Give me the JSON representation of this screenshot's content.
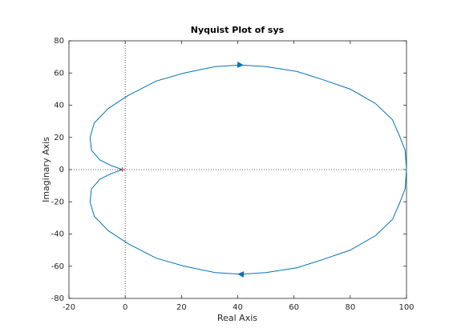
{
  "chart_data": {
    "type": "line",
    "title": "Nyquist Plot of sys",
    "x_label": "Real Axis",
    "y_label": "Imaginary Axis",
    "x": [
      -1,
      -5,
      -9,
      -12,
      -12.5,
      -11,
      -6,
      1,
      11,
      21,
      32,
      41,
      50,
      61,
      70,
      80,
      89,
      95,
      97.5,
      99.5,
      100,
      99.5,
      97.5,
      95,
      89,
      80,
      70,
      61,
      50,
      41,
      32,
      21,
      11,
      1,
      -6,
      -11,
      -12.5,
      -12,
      -9,
      -5,
      -1
    ],
    "values": [
      0,
      2.5,
      6,
      12,
      20,
      29,
      38,
      46,
      55,
      60,
      64,
      65,
      64,
      61,
      56,
      50,
      41,
      31,
      21,
      12,
      0,
      -12,
      -21,
      -31,
      -41,
      -50,
      -56,
      -61,
      -64,
      -65,
      -64,
      -60,
      -55,
      -46,
      -38,
      -29,
      -20,
      -12,
      -6,
      -2.5,
      0
    ],
    "color": "#0072bd",
    "critical_point": {
      "x": -1,
      "y": 0,
      "color": "#c0392b"
    },
    "xlim": [
      -20,
      100
    ],
    "xticks": [
      -20,
      0,
      20,
      40,
      60,
      80,
      100
    ],
    "ylim": [
      -80,
      80
    ],
    "yticks": [
      -80,
      -60,
      -40,
      -20,
      0,
      20,
      40,
      60,
      80
    ]
  }
}
